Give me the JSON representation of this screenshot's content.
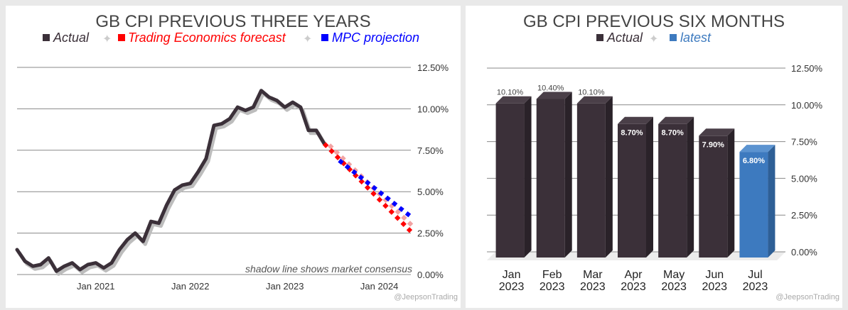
{
  "charts": [
    {
      "type": "line",
      "title": "GB CPI PREVIOUS THREE YEARS",
      "legend": [
        {
          "label": "Actual",
          "color": "#3b3039"
        },
        {
          "label": "Trading Economics forecast",
          "color": "#ff0000"
        },
        {
          "label": "MPC projection",
          "color": "#0000ff"
        }
      ],
      "yticks": [
        "12.50%",
        "10.00%",
        "7.50%",
        "5.00%",
        "2.50%",
        "0.00%"
      ],
      "xticks": [
        "Jan 2021",
        "Jan 2022",
        "Jan 2023",
        "Jan 2024"
      ],
      "note": "shadow line shows market consensus",
      "credit": "@JeepsonTrading"
    },
    {
      "type": "bar",
      "title": "GB CPI PREVIOUS SIX MONTHS",
      "legend": [
        {
          "label": "Actual",
          "color": "#3b3039"
        },
        {
          "label": "latest",
          "color": "#3d7abf"
        }
      ],
      "yticks": [
        "12.50%",
        "10.00%",
        "7.50%",
        "5.00%",
        "2.50%",
        "0.00%"
      ],
      "credit": "@JeepsonTrading"
    }
  ],
  "chart_data": [
    {
      "type": "line",
      "title": "GB CPI PREVIOUS THREE YEARS",
      "ylim": [
        0,
        12.5
      ],
      "xlim": [
        "2020-03",
        "2024-05"
      ],
      "series": [
        {
          "name": "Actual",
          "x": [
            "2020-03",
            "2020-04",
            "2020-05",
            "2020-06",
            "2020-07",
            "2020-08",
            "2020-09",
            "2020-10",
            "2020-11",
            "2020-12",
            "2021-01",
            "2021-02",
            "2021-03",
            "2021-04",
            "2021-05",
            "2021-06",
            "2021-07",
            "2021-08",
            "2021-09",
            "2021-10",
            "2021-11",
            "2021-12",
            "2022-01",
            "2022-02",
            "2022-03",
            "2022-04",
            "2022-05",
            "2022-06",
            "2022-07",
            "2022-08",
            "2022-09",
            "2022-10",
            "2022-11",
            "2022-12",
            "2023-01",
            "2023-02",
            "2023-03",
            "2023-04",
            "2023-05",
            "2023-06"
          ],
          "values": [
            1.5,
            0.8,
            0.5,
            0.6,
            1.0,
            0.2,
            0.5,
            0.7,
            0.3,
            0.6,
            0.7,
            0.4,
            0.7,
            1.5,
            2.1,
            2.5,
            2.0,
            3.2,
            3.1,
            4.2,
            5.1,
            5.4,
            5.5,
            6.2,
            7.0,
            9.0,
            9.1,
            9.4,
            10.1,
            9.9,
            10.1,
            11.1,
            10.7,
            10.5,
            10.1,
            10.4,
            10.1,
            8.7,
            8.7,
            7.9
          ]
        },
        {
          "name": "Trading Economics forecast",
          "x": [
            "2023-06",
            "2024-05"
          ],
          "values": [
            7.9,
            2.6
          ]
        },
        {
          "name": "MPC projection",
          "x": [
            "2023-07",
            "2024-05"
          ],
          "values": [
            6.8,
            3.5
          ]
        }
      ]
    },
    {
      "type": "bar",
      "title": "GB CPI PREVIOUS SIX MONTHS",
      "categories": [
        "Jan 2023",
        "Feb 2023",
        "Mar 2023",
        "Apr 2023",
        "May 2023",
        "Jun 2023",
        "Jul 2023"
      ],
      "values": [
        10.1,
        10.4,
        10.1,
        8.7,
        8.7,
        7.9,
        6.8
      ],
      "labels": [
        "10.10%",
        "10.40%",
        "10.10%",
        "8.70%",
        "8.70%",
        "7.90%",
        "6.80%"
      ],
      "latest_index": 6,
      "ylim": [
        0,
        12.5
      ]
    }
  ]
}
